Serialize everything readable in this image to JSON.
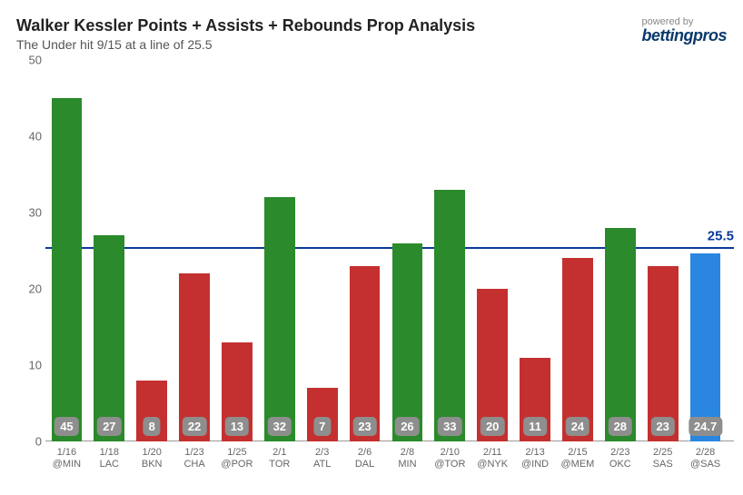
{
  "header": {
    "title": "Walker Kessler Points + Assists + Rebounds Prop Analysis",
    "subtitle": "The Under hit 9/15 at a line of 25.5",
    "powered_label": "powered by",
    "brand": "bettingpros"
  },
  "chart": {
    "type": "bar",
    "y_axis": {
      "min": 0,
      "max": 50,
      "step": 10
    },
    "line_value": 25.5,
    "line_label": "25.5",
    "line_color": "#0a3a9b",
    "colors": {
      "over": "#2b8a2b",
      "under": "#c43030",
      "projection": "#2a86e0",
      "badge_bg": "#8e8e8e",
      "badge_text": "#ffffff",
      "axis_text": "#666666"
    },
    "bar_width_ratio": 0.72,
    "data": [
      {
        "x1": "1/16",
        "x2": "@MIN",
        "value": 45,
        "cat": "over",
        "label": "45"
      },
      {
        "x1": "1/18",
        "x2": "LAC",
        "value": 27,
        "cat": "over",
        "label": "27"
      },
      {
        "x1": "1/20",
        "x2": "BKN",
        "value": 8,
        "cat": "under",
        "label": "8"
      },
      {
        "x1": "1/23",
        "x2": "CHA",
        "value": 22,
        "cat": "under",
        "label": "22"
      },
      {
        "x1": "1/25",
        "x2": "@POR",
        "value": 13,
        "cat": "under",
        "label": "13"
      },
      {
        "x1": "2/1",
        "x2": "TOR",
        "value": 32,
        "cat": "over",
        "label": "32"
      },
      {
        "x1": "2/3",
        "x2": "ATL",
        "value": 7,
        "cat": "under",
        "label": "7"
      },
      {
        "x1": "2/6",
        "x2": "DAL",
        "value": 23,
        "cat": "under",
        "label": "23"
      },
      {
        "x1": "2/8",
        "x2": "MIN",
        "value": 26,
        "cat": "over",
        "label": "26"
      },
      {
        "x1": "2/10",
        "x2": "@TOR",
        "value": 33,
        "cat": "over",
        "label": "33"
      },
      {
        "x1": "2/11",
        "x2": "@NYK",
        "value": 20,
        "cat": "under",
        "label": "20"
      },
      {
        "x1": "2/13",
        "x2": "@IND",
        "value": 11,
        "cat": "under",
        "label": "11"
      },
      {
        "x1": "2/15",
        "x2": "@MEM",
        "value": 24,
        "cat": "under",
        "label": "24"
      },
      {
        "x1": "2/23",
        "x2": "OKC",
        "value": 28,
        "cat": "over",
        "label": "28"
      },
      {
        "x1": "2/25",
        "x2": "SAS",
        "value": 23,
        "cat": "under",
        "label": "23"
      },
      {
        "x1": "2/28",
        "x2": "@SAS",
        "value": 24.7,
        "cat": "projection",
        "label": "24.7"
      }
    ]
  }
}
